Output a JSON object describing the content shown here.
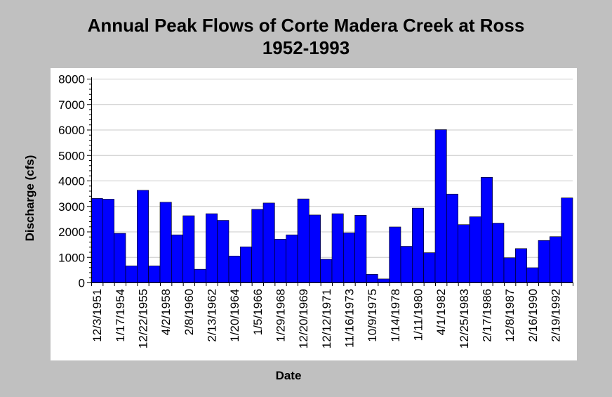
{
  "chart_data": {
    "type": "bar",
    "title": [
      "Annual Peak Flows of Corte Madera Creek at Ross",
      "1952-1993"
    ],
    "xlabel": "Date",
    "ylabel": "Discharge (cfs)",
    "ylim": [
      0,
      8000
    ],
    "yticks": [
      0,
      1000,
      2000,
      3000,
      4000,
      5000,
      6000,
      7000,
      8000
    ],
    "grid": "horizontal",
    "legend": "none",
    "bar_color": "#0000ff",
    "categories": [
      "12/3/1951",
      "",
      "1/17/1954",
      "",
      "12/22/1955",
      "",
      "4/2/1958",
      "",
      "2/8/1960",
      "",
      "2/13/1962",
      "",
      "1/20/1964",
      "",
      "1/5/1966",
      "",
      "1/29/1968",
      "",
      "12/20/1969",
      "",
      "12/12/1971",
      "",
      "11/16/1973",
      "",
      "10/9/1975",
      "",
      "1/14/1978",
      "",
      "1/11/1980",
      "",
      "4/1/1982",
      "",
      "12/25/1983",
      "",
      "2/17/1986",
      "",
      "12/8/1987",
      "",
      "2/16/1990",
      "",
      "2/19/1992",
      ""
    ],
    "values": [
      3300,
      3270,
      1930,
      650,
      3620,
      650,
      3150,
      1870,
      2620,
      520,
      2700,
      2440,
      1040,
      1400,
      2870,
      3120,
      1700,
      1870,
      3280,
      2650,
      910,
      2700,
      1950,
      2640,
      320,
      140,
      2180,
      1420,
      2920,
      1170,
      6000,
      3470,
      2270,
      2580,
      4130,
      2330,
      970,
      1330,
      580,
      1650,
      1800,
      3320
    ]
  }
}
